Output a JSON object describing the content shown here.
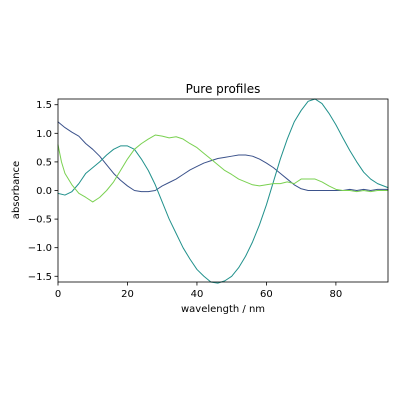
{
  "chart_data": {
    "type": "line",
    "title": "Pure profiles",
    "xlabel": "wavelength / nm",
    "ylabel": "absorbance",
    "xlim": [
      0,
      95
    ],
    "ylim": [
      -1.6,
      1.6
    ],
    "x_ticks": [
      0,
      20,
      40,
      60,
      80
    ],
    "y_ticks": [
      -1.5,
      -1.0,
      -0.5,
      0.0,
      0.5,
      1.0,
      1.5
    ],
    "x_tick_labels": [
      "0",
      "20",
      "40",
      "60",
      "80"
    ],
    "y_tick_labels": [
      "−1.5",
      "−1.0",
      "−0.5",
      "0.0",
      "0.5",
      "1.0",
      "1.5"
    ],
    "grid": false,
    "series": [
      {
        "color": "#3b528b",
        "points": [
          [
            0,
            1.2
          ],
          [
            2,
            1.1
          ],
          [
            4,
            1.02
          ],
          [
            6,
            0.95
          ],
          [
            8,
            0.82
          ],
          [
            10,
            0.72
          ],
          [
            12,
            0.6
          ],
          [
            14,
            0.45
          ],
          [
            16,
            0.3
          ],
          [
            18,
            0.18
          ],
          [
            20,
            0.08
          ],
          [
            22,
            0.0
          ],
          [
            24,
            -0.02
          ],
          [
            26,
            -0.02
          ],
          [
            28,
            0.0
          ],
          [
            30,
            0.08
          ],
          [
            32,
            0.14
          ],
          [
            34,
            0.2
          ],
          [
            36,
            0.28
          ],
          [
            38,
            0.36
          ],
          [
            40,
            0.42
          ],
          [
            42,
            0.48
          ],
          [
            44,
            0.52
          ],
          [
            46,
            0.56
          ],
          [
            48,
            0.58
          ],
          [
            50,
            0.6
          ],
          [
            52,
            0.62
          ],
          [
            54,
            0.62
          ],
          [
            56,
            0.6
          ],
          [
            58,
            0.55
          ],
          [
            60,
            0.48
          ],
          [
            62,
            0.4
          ],
          [
            64,
            0.3
          ],
          [
            66,
            0.2
          ],
          [
            68,
            0.1
          ],
          [
            70,
            0.03
          ],
          [
            72,
            0.0
          ],
          [
            74,
            0.0
          ],
          [
            76,
            0.0
          ],
          [
            78,
            0.0
          ],
          [
            80,
            0.0
          ],
          [
            82,
            0.0
          ],
          [
            84,
            0.02
          ],
          [
            86,
            0.0
          ],
          [
            88,
            0.02
          ],
          [
            90,
            0.0
          ],
          [
            92,
            0.02
          ],
          [
            95,
            0.02
          ]
        ]
      },
      {
        "color": "#21918c",
        "points": [
          [
            0,
            -0.05
          ],
          [
            2,
            -0.08
          ],
          [
            4,
            -0.02
          ],
          [
            6,
            0.12
          ],
          [
            8,
            0.3
          ],
          [
            10,
            0.4
          ],
          [
            12,
            0.5
          ],
          [
            14,
            0.62
          ],
          [
            16,
            0.72
          ],
          [
            18,
            0.78
          ],
          [
            20,
            0.78
          ],
          [
            22,
            0.72
          ],
          [
            24,
            0.55
          ],
          [
            26,
            0.35
          ],
          [
            28,
            0.1
          ],
          [
            30,
            -0.2
          ],
          [
            32,
            -0.5
          ],
          [
            34,
            -0.75
          ],
          [
            36,
            -1.0
          ],
          [
            38,
            -1.2
          ],
          [
            40,
            -1.38
          ],
          [
            42,
            -1.5
          ],
          [
            44,
            -1.6
          ],
          [
            46,
            -1.62
          ],
          [
            48,
            -1.58
          ],
          [
            50,
            -1.5
          ],
          [
            52,
            -1.35
          ],
          [
            54,
            -1.15
          ],
          [
            56,
            -0.9
          ],
          [
            58,
            -0.6
          ],
          [
            60,
            -0.25
          ],
          [
            62,
            0.15
          ],
          [
            64,
            0.55
          ],
          [
            66,
            0.9
          ],
          [
            68,
            1.2
          ],
          [
            70,
            1.4
          ],
          [
            72,
            1.56
          ],
          [
            74,
            1.6
          ],
          [
            76,
            1.52
          ],
          [
            78,
            1.35
          ],
          [
            80,
            1.15
          ],
          [
            82,
            0.92
          ],
          [
            84,
            0.7
          ],
          [
            86,
            0.5
          ],
          [
            88,
            0.32
          ],
          [
            90,
            0.2
          ],
          [
            92,
            0.12
          ],
          [
            95,
            0.05
          ]
        ]
      },
      {
        "color": "#7ad151",
        "points": [
          [
            0,
            0.8
          ],
          [
            1,
            0.5
          ],
          [
            2,
            0.3
          ],
          [
            4,
            0.1
          ],
          [
            6,
            -0.05
          ],
          [
            8,
            -0.12
          ],
          [
            10,
            -0.2
          ],
          [
            12,
            -0.12
          ],
          [
            14,
            0.0
          ],
          [
            16,
            0.15
          ],
          [
            18,
            0.35
          ],
          [
            20,
            0.55
          ],
          [
            22,
            0.72
          ],
          [
            24,
            0.82
          ],
          [
            26,
            0.9
          ],
          [
            28,
            0.97
          ],
          [
            30,
            0.95
          ],
          [
            32,
            0.92
          ],
          [
            34,
            0.94
          ],
          [
            36,
            0.9
          ],
          [
            38,
            0.82
          ],
          [
            40,
            0.75
          ],
          [
            42,
            0.65
          ],
          [
            44,
            0.55
          ],
          [
            46,
            0.45
          ],
          [
            48,
            0.35
          ],
          [
            50,
            0.28
          ],
          [
            52,
            0.2
          ],
          [
            54,
            0.15
          ],
          [
            56,
            0.1
          ],
          [
            58,
            0.08
          ],
          [
            60,
            0.1
          ],
          [
            62,
            0.12
          ],
          [
            64,
            0.12
          ],
          [
            66,
            0.15
          ],
          [
            68,
            0.12
          ],
          [
            70,
            0.2
          ],
          [
            72,
            0.2
          ],
          [
            74,
            0.2
          ],
          [
            76,
            0.15
          ],
          [
            78,
            0.08
          ],
          [
            80,
            0.02
          ],
          [
            82,
            0.0
          ],
          [
            84,
            0.0
          ],
          [
            86,
            -0.02
          ],
          [
            88,
            0.0
          ],
          [
            90,
            -0.02
          ],
          [
            92,
            0.0
          ],
          [
            95,
            0.0
          ]
        ]
      }
    ]
  }
}
